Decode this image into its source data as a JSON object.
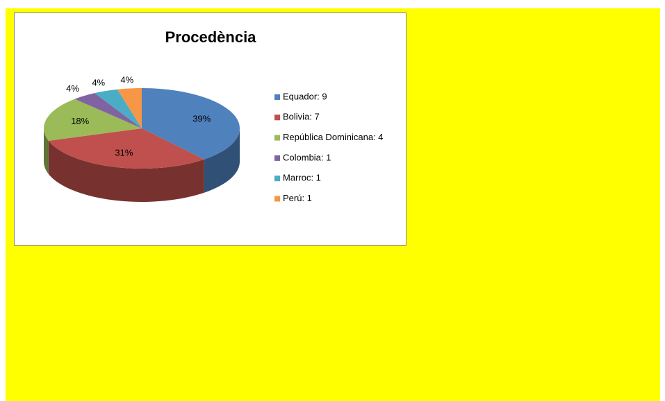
{
  "chart_data": {
    "type": "pie3d",
    "title": "Procedència",
    "categories": [
      "Equador: 9",
      "Bolivia: 7",
      "República Dominicana: 4",
      "Colombia: 1",
      "Marroc: 1",
      "Perú: 1"
    ],
    "values": [
      39,
      31,
      18,
      4,
      4,
      4
    ],
    "value_labels": [
      "39%",
      "31%",
      "18%",
      "4%",
      "4%",
      "4%"
    ],
    "colors": [
      "#4f81bd",
      "#c0504d",
      "#9bbb59",
      "#8064a2",
      "#4bacc6",
      "#f79646"
    ],
    "legend": "right"
  }
}
